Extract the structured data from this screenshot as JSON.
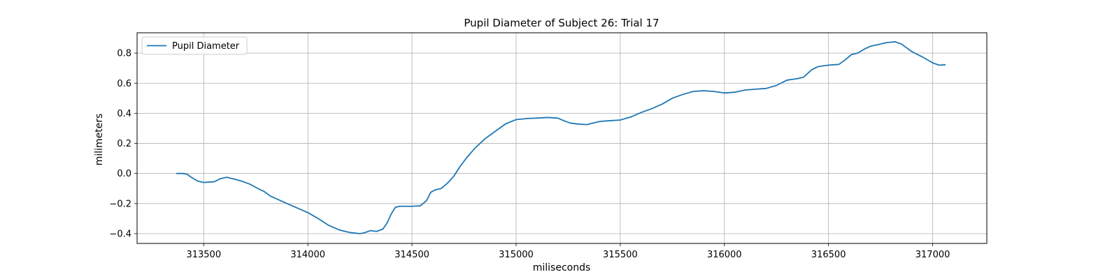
{
  "chart_data": {
    "type": "line",
    "title": "Pupil Diameter of Subject 26: Trial 17",
    "xlabel": "miliseconds",
    "ylabel": "milimeters",
    "xlim": [
      313180,
      317260
    ],
    "ylim": [
      -0.465,
      0.935
    ],
    "xticks": [
      313500,
      314000,
      314500,
      315000,
      315500,
      316000,
      316500,
      317000
    ],
    "xtick_labels": [
      "313500",
      "314000",
      "314500",
      "315000",
      "315500",
      "316000",
      "316500",
      "317000"
    ],
    "yticks": [
      -0.4,
      -0.2,
      0.0,
      0.2,
      0.4,
      0.6,
      0.8
    ],
    "ytick_labels": [
      "−0.4",
      "−0.2",
      "0.0",
      "0.2",
      "0.4",
      "0.6",
      "0.8"
    ],
    "grid": true,
    "legend_position": "top-left",
    "series": [
      {
        "name": "Pupil Diameter",
        "color": "#1f77b4",
        "x": [
          313370,
          313400,
          313420,
          313440,
          313470,
          313500,
          313550,
          313580,
          313610,
          313640,
          313680,
          313720,
          313760,
          313790,
          313820,
          313860,
          313900,
          313950,
          314000,
          314050,
          314100,
          314150,
          314200,
          314250,
          314270,
          314300,
          314330,
          314360,
          314380,
          314400,
          314420,
          314440,
          314470,
          314500,
          314540,
          314570,
          314590,
          314610,
          314640,
          314670,
          314700,
          314730,
          314760,
          314800,
          314850,
          314900,
          314950,
          315000,
          315050,
          315100,
          315150,
          315200,
          315230,
          315260,
          315300,
          315340,
          315370,
          315400,
          315440,
          315500,
          315550,
          315600,
          315650,
          315700,
          315750,
          315800,
          315850,
          315900,
          315950,
          316000,
          316050,
          316100,
          316150,
          316200,
          316250,
          316300,
          316350,
          316380,
          316420,
          316450,
          316500,
          316550,
          316580,
          316610,
          316640,
          316670,
          316700,
          316750,
          316780,
          316820,
          316850,
          316900,
          316950,
          317000,
          317030,
          317060
        ],
        "y": [
          0.0,
          0.0,
          -0.005,
          -0.025,
          -0.05,
          -0.06,
          -0.055,
          -0.035,
          -0.025,
          -0.035,
          -0.05,
          -0.07,
          -0.1,
          -0.12,
          -0.15,
          -0.175,
          -0.2,
          -0.23,
          -0.26,
          -0.3,
          -0.345,
          -0.375,
          -0.392,
          -0.4,
          -0.395,
          -0.38,
          -0.385,
          -0.37,
          -0.33,
          -0.27,
          -0.225,
          -0.218,
          -0.218,
          -0.218,
          -0.215,
          -0.18,
          -0.125,
          -0.11,
          -0.1,
          -0.065,
          -0.02,
          0.045,
          0.1,
          0.165,
          0.23,
          0.28,
          0.33,
          0.358,
          0.365,
          0.368,
          0.372,
          0.368,
          0.35,
          0.335,
          0.328,
          0.325,
          0.335,
          0.345,
          0.35,
          0.355,
          0.375,
          0.405,
          0.43,
          0.46,
          0.5,
          0.525,
          0.545,
          0.55,
          0.545,
          0.535,
          0.54,
          0.555,
          0.56,
          0.565,
          0.585,
          0.62,
          0.63,
          0.64,
          0.69,
          0.71,
          0.72,
          0.725,
          0.755,
          0.79,
          0.8,
          0.825,
          0.845,
          0.86,
          0.87,
          0.875,
          0.86,
          0.81,
          0.775,
          0.735,
          0.72,
          0.722
        ]
      }
    ]
  }
}
